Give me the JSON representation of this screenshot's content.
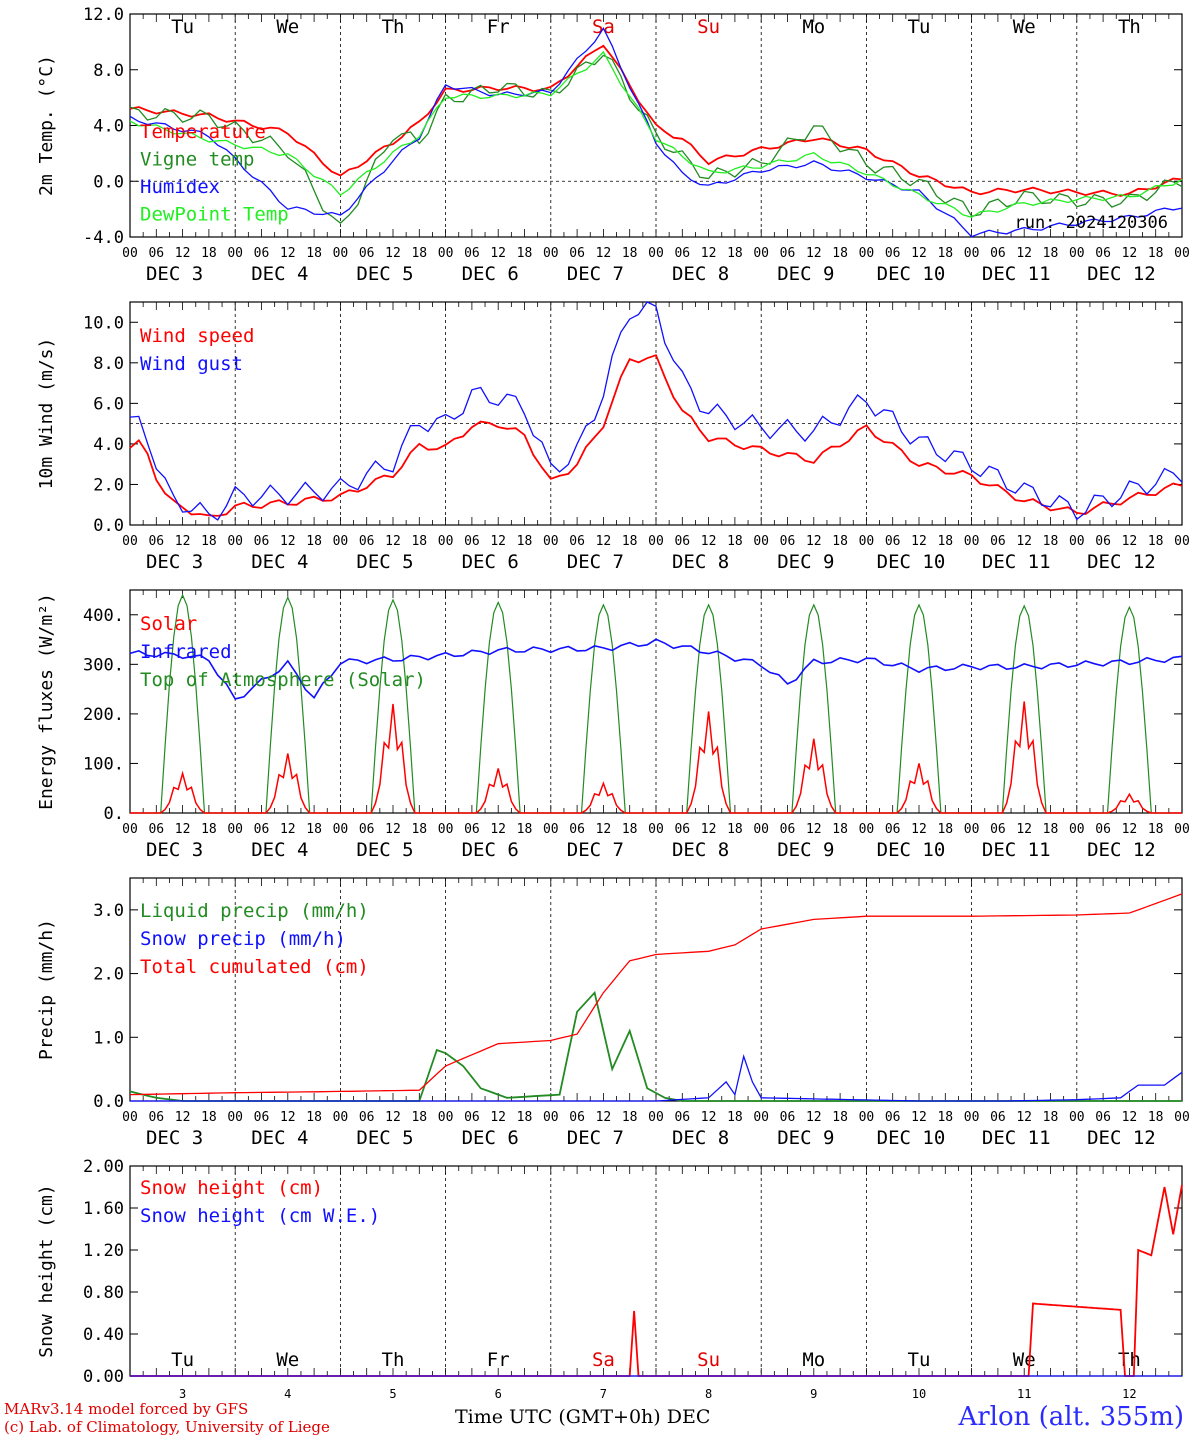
{
  "run_label": "run: 2024120306",
  "station": "Arlon (alt. 355m)",
  "footer": {
    "line1": "MARv3.14 model forced by GFS",
    "line2": "(c) Lab. of Climatology, University of Liege"
  },
  "x_title": "Time UTC (GMT+0h)",
  "x_unit": "DEC",
  "weekdays": [
    "Tu",
    "We",
    "Th",
    "Fr",
    "Sa",
    "Su",
    "Mo",
    "Tu",
    "We",
    "Th"
  ],
  "weekend_color": "#e00000",
  "date_labels": [
    "DEC  3",
    "DEC  4",
    "DEC  5",
    "DEC  6",
    "DEC  7",
    "DEC  8",
    "DEC  9",
    "DEC 10",
    "DEC 11",
    "DEC 12"
  ],
  "bottom_day_numbers": [
    "3",
    "4",
    "5",
    "6",
    "7",
    "8",
    "9",
    "10",
    "11",
    "12"
  ],
  "hour_ticks": [
    "00",
    "06",
    "12",
    "18"
  ],
  "chart_data": [
    {
      "type": "line",
      "ylabel": "2m Temp. (°C)",
      "ylim": [
        -4,
        12
      ],
      "yticks": [
        "-4.0",
        "0.0",
        "4.0",
        "8.0",
        "12.0"
      ],
      "ytick_values": [
        -4,
        0,
        4,
        8,
        12
      ],
      "dashed_ref": 0,
      "x_hours": [
        0,
        18,
        36,
        48,
        60,
        66,
        72,
        84,
        96,
        108,
        120,
        126,
        132,
        144,
        156,
        168,
        180,
        192,
        204,
        216,
        228,
        240
      ],
      "series": [
        {
          "name": "Temperature",
          "color": "#ff0000",
          "values": [
            5.2,
            4.7,
            3.5,
            0.3,
            2.8,
            4.2,
            6.5,
            6.7,
            6.6,
            9.9,
            3.9,
            3.0,
            1.4,
            2.3,
            3.1,
            2.2,
            0.4,
            -0.8,
            -0.6,
            -0.8,
            -0.9,
            0.2
          ]
        },
        {
          "name": "Vigne temp",
          "color": "#228b22",
          "values": [
            4.9,
            4.6,
            2.2,
            -3.5,
            3.4,
            2.9,
            5.8,
            6.8,
            6.2,
            9.3,
            3.3,
            1.7,
            0.3,
            1.3,
            3.9,
            1.3,
            -0.1,
            -2.2,
            -1.1,
            -1.4,
            -1.4,
            0.1
          ]
        },
        {
          "name": "Humidex",
          "color": "#1010ff",
          "values": [
            4.5,
            3.3,
            -1.9,
            -2.5,
            1.5,
            3.2,
            6.9,
            6.2,
            6.4,
            10.9,
            2.8,
            0.5,
            -0.4,
            0.8,
            1.3,
            0.3,
            -0.8,
            -3.8,
            -3.5,
            -3.0,
            -2.6,
            -1.8
          ]
        },
        {
          "name": "DewPoint Temp",
          "color": "#22ee22",
          "values": [
            4.3,
            3.0,
            1.9,
            -0.9,
            2.0,
            3.3,
            6.1,
            6.1,
            6.3,
            9.1,
            3.1,
            1.8,
            0.6,
            1.1,
            1.9,
            0.6,
            -1.0,
            -2.5,
            -1.6,
            -1.3,
            -1.1,
            0.1
          ]
        }
      ]
    },
    {
      "type": "line",
      "ylabel": "10m Wind (m/s)",
      "ylim": [
        0,
        11
      ],
      "yticks": [
        "0.0",
        "2.0",
        "4.0",
        "6.0",
        "8.0",
        "10.0"
      ],
      "ytick_values": [
        0,
        2,
        4,
        6,
        8,
        10
      ],
      "dashed_ref": 5,
      "x_hours": [
        0,
        3,
        6,
        9,
        12,
        18,
        24,
        36,
        48,
        60,
        66,
        72,
        78,
        84,
        90,
        96,
        102,
        108,
        114,
        120,
        126,
        132,
        144,
        156,
        168,
        180,
        192,
        204,
        216,
        228,
        240
      ],
      "series": [
        {
          "name": "Wind speed",
          "color": "#ff0000",
          "values": [
            3.8,
            4.1,
            2.4,
            1.1,
            0.9,
            0.3,
            0.9,
            1.1,
            1.4,
            2.5,
            3.9,
            3.8,
            4.9,
            5.0,
            4.4,
            2.1,
            3.0,
            5.0,
            8.2,
            8.2,
            5.6,
            4.3,
            3.7,
            3.2,
            4.8,
            3.0,
            2.4,
            1.2,
            0.6,
            1.3,
            2.0
          ]
        },
        {
          "name": "Wind gust",
          "color": "#1010ff",
          "values": [
            4.9,
            5.2,
            3.0,
            1.3,
            1.1,
            0.4,
            1.4,
            1.5,
            1.8,
            3.1,
            5.1,
            5.0,
            6.4,
            6.3,
            5.8,
            2.7,
            3.6,
            6.6,
            10.6,
            10.6,
            7.1,
            5.6,
            4.8,
            4.6,
            6.2,
            4.1,
            3.0,
            1.7,
            0.7,
            1.7,
            2.6
          ]
        }
      ]
    },
    {
      "type": "line",
      "ylabel": "Energy fluxes (W/m²)",
      "ylim": [
        0,
        450
      ],
      "yticks": [
        "0.",
        "100.",
        "200.",
        "300.",
        "400."
      ],
      "ytick_values": [
        0,
        100,
        200,
        300,
        400
      ],
      "dashed_ref": null,
      "day_peaks": {
        "top_of_atmosphere": [
          440,
          435,
          430,
          425,
          420,
          420,
          420,
          420,
          418,
          415
        ],
        "solar": [
          80,
          120,
          220,
          90,
          60,
          205,
          150,
          100,
          225,
          38
        ]
      },
      "series": [
        {
          "name": "Solar",
          "color": "#ff0000"
        },
        {
          "name": "Infrared",
          "color": "#1010ff",
          "x_hours": [
            0,
            12,
            18,
            24,
            36,
            42,
            48,
            60,
            72,
            84,
            96,
            108,
            120,
            132,
            144,
            150,
            156,
            168,
            180,
            192,
            204,
            216,
            228,
            240
          ],
          "values": [
            322,
            318,
            310,
            228,
            302,
            232,
            305,
            310,
            318,
            328,
            330,
            332,
            345,
            325,
            300,
            260,
            305,
            310,
            290,
            295,
            295,
            300,
            305,
            312
          ]
        },
        {
          "name": "Top of Atmosphere (Solar)",
          "color": "#228b22"
        }
      ]
    },
    {
      "type": "line",
      "ylabel": "Precip (mm/h)",
      "ylim": [
        0,
        3.5
      ],
      "yticks": [
        "0.0",
        "1.0",
        "2.0",
        "3.0"
      ],
      "ytick_values": [
        0,
        1,
        2,
        3
      ],
      "dashed_ref": null,
      "series": [
        {
          "name": "Liquid precip (mm/h)",
          "color": "#228b22",
          "x_hours": [
            0,
            6,
            12,
            66,
            70,
            72,
            76,
            80,
            86,
            98,
            102,
            106,
            110,
            114,
            118,
            122,
            126,
            132,
            240
          ],
          "values": [
            0.15,
            0.05,
            0.0,
            0.0,
            0.8,
            0.75,
            0.55,
            0.2,
            0.05,
            0.1,
            1.4,
            1.7,
            0.5,
            1.1,
            0.2,
            0.05,
            0.0,
            0.0,
            0.0
          ]
        },
        {
          "name": "Snow precip (mm/h)",
          "color": "#1010ff",
          "x_hours": [
            0,
            120,
            132,
            136,
            138,
            140,
            142,
            144,
            180,
            200,
            216,
            226,
            230,
            236,
            240
          ],
          "values": [
            0.0,
            0.0,
            0.05,
            0.3,
            0.1,
            0.7,
            0.3,
            0.05,
            0.0,
            0.0,
            0.02,
            0.05,
            0.25,
            0.25,
            0.45
          ]
        },
        {
          "name": "Total cumulated (cm)",
          "color": "#ff0000",
          "x_hours": [
            0,
            24,
            48,
            66,
            72,
            84,
            96,
            102,
            108,
            114,
            120,
            132,
            138,
            144,
            156,
            168,
            192,
            216,
            228,
            240
          ],
          "values": [
            0.1,
            0.13,
            0.15,
            0.17,
            0.55,
            0.9,
            0.95,
            1.05,
            1.7,
            2.2,
            2.3,
            2.35,
            2.45,
            2.7,
            2.85,
            2.9,
            2.9,
            2.92,
            2.95,
            3.25
          ]
        }
      ]
    },
    {
      "type": "line",
      "ylabel": "Snow height (cm)",
      "ylim": [
        0,
        2
      ],
      "yticks": [
        "0.00",
        "0.40",
        "0.80",
        "1.20",
        "1.60",
        "2.00"
      ],
      "ytick_values": [
        0,
        0.4,
        0.8,
        1.2,
        1.6,
        2.0
      ],
      "dashed_ref": null,
      "series": [
        {
          "name": "Snow height (cm)",
          "color": "#ff0000",
          "x_hours": [
            0,
            114,
            115,
            116,
            205,
            206,
            226,
            227,
            229,
            230,
            233,
            236,
            238,
            240
          ],
          "values": [
            0,
            0,
            0.62,
            0,
            0,
            0.69,
            0.63,
            0,
            0,
            1.2,
            1.15,
            1.8,
            1.35,
            1.82
          ]
        },
        {
          "name": "Snow height (cm W.E.)",
          "color": "#1010ff",
          "x_hours": [
            0,
            240
          ],
          "values": [
            0,
            0
          ]
        }
      ]
    }
  ]
}
